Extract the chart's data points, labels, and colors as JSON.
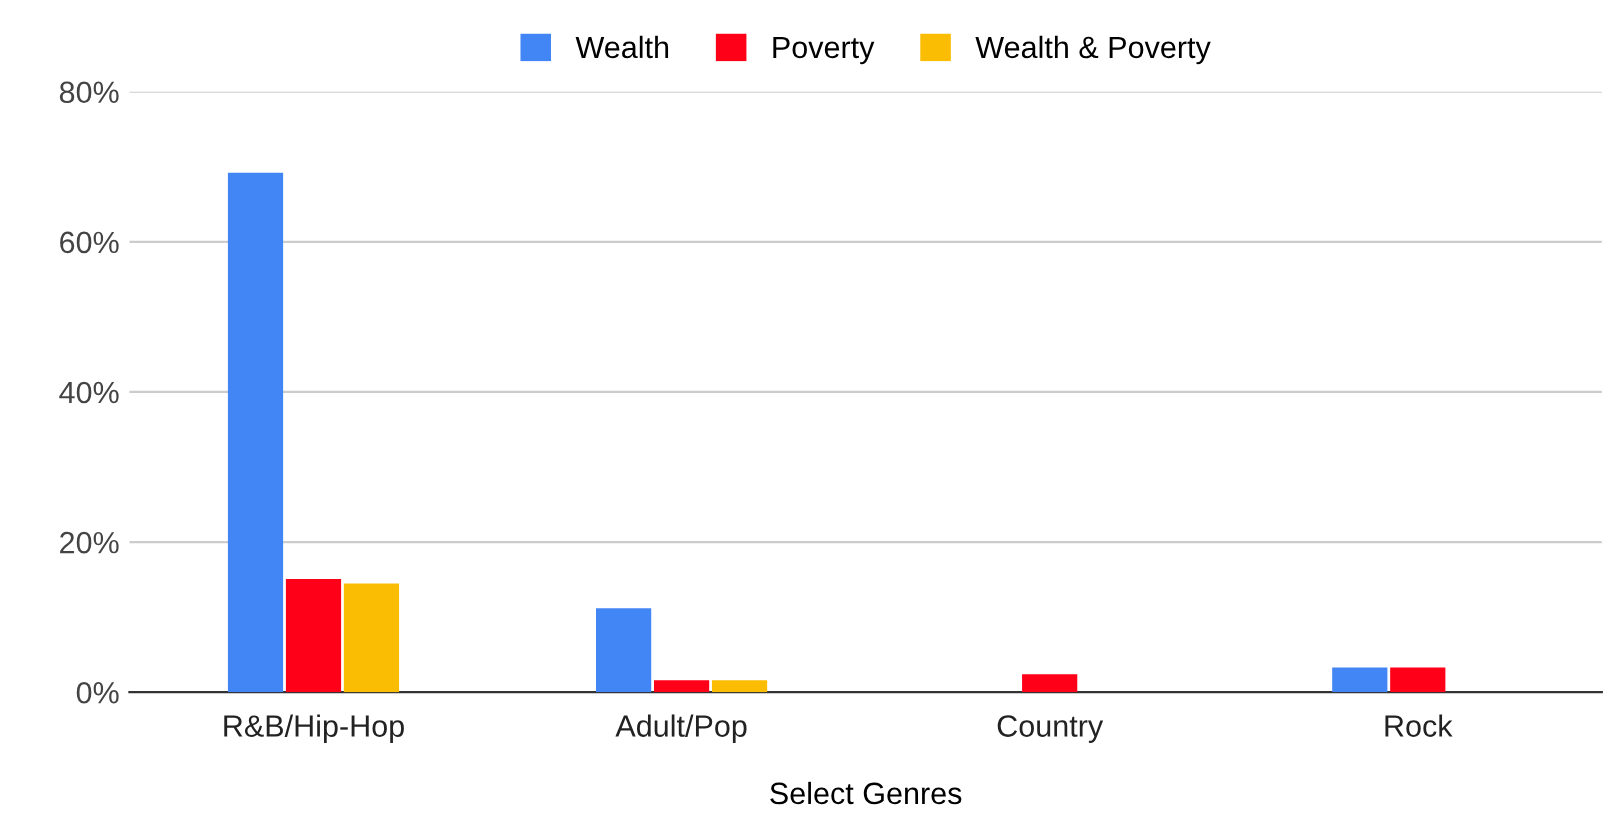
{
  "chart_data": {
    "type": "bar",
    "xlabel": "Select Genres",
    "categories": [
      "R&B/Hip-Hop",
      "Adult/Pop",
      "Country",
      "Rock"
    ],
    "series": [
      {
        "name": "Wealth",
        "color": "#4285f4",
        "values": [
          69.2,
          11.2,
          0,
          3.3
        ]
      },
      {
        "name": "Poverty",
        "color": "#ff0019",
        "values": [
          15.1,
          1.6,
          2.4,
          3.3
        ]
      },
      {
        "name": "Wealth & Poverty",
        "color": "#fbbc04",
        "values": [
          14.5,
          1.6,
          0,
          0
        ]
      }
    ],
    "ylim": [
      0,
      80
    ],
    "yticks": [
      {
        "value": 0,
        "label": "0%"
      },
      {
        "value": 20,
        "label": "20%"
      },
      {
        "value": 40,
        "label": "40%"
      },
      {
        "value": 60,
        "label": "60%"
      },
      {
        "value": 80,
        "label": "80%"
      }
    ],
    "grid": "y",
    "legend": "top"
  }
}
